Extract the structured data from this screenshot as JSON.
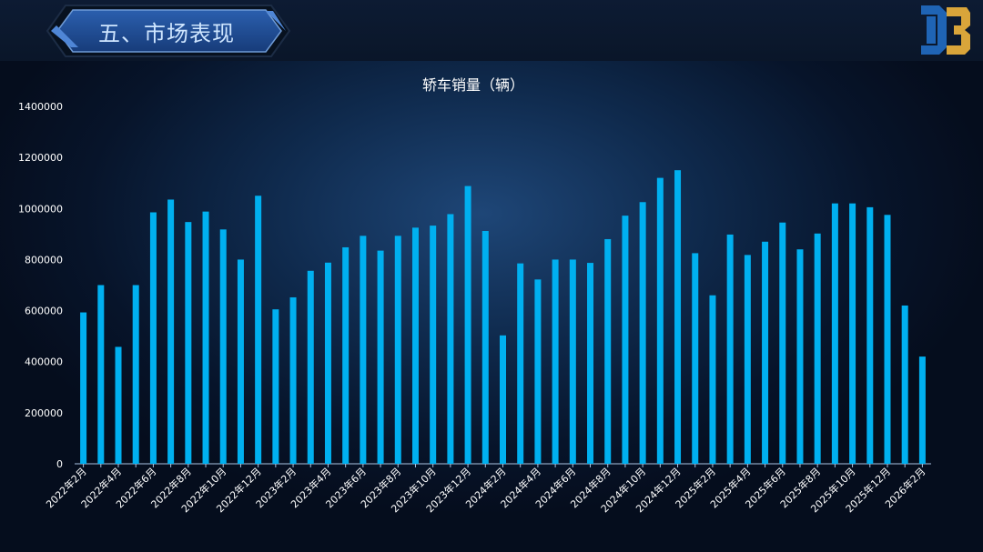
{
  "header": {
    "section_title": "五、市场表现",
    "logo_icon": "db-logo-icon"
  },
  "colors": {
    "bar": "#00b0f0",
    "axis": "#a9c4e2",
    "text": "#ffffff",
    "title_text": "#cfe6ff"
  },
  "chart_data": {
    "type": "bar",
    "title": "轿车销量（辆）",
    "xlabel": "",
    "ylabel": "",
    "ylim": [
      0,
      1400000
    ],
    "yticks": [
      0,
      200000,
      400000,
      600000,
      800000,
      1000000,
      1200000,
      1400000
    ],
    "grid": false,
    "legend": "none",
    "categories": [
      "2022年2月",
      "2022年3月",
      "2022年4月",
      "2022年5月",
      "2022年6月",
      "2022年7月",
      "2022年8月",
      "2022年9月",
      "2022年10月",
      "2022年11月",
      "2022年12月",
      "2023年1月",
      "2023年2月",
      "2023年3月",
      "2023年4月",
      "2023年5月",
      "2023年6月",
      "2023年7月",
      "2023年8月",
      "2023年9月",
      "2023年10月",
      "2023年11月",
      "2023年12月",
      "2024年1月",
      "2024年2月",
      "2024年3月",
      "2024年4月",
      "2024年5月",
      "2024年6月",
      "2024年7月",
      "2024年8月",
      "2024年9月",
      "2024年10月",
      "2024年11月",
      "2024年12月",
      "2025年1月",
      "2025年2月",
      "2025年3月",
      "2025年4月",
      "2025年5月",
      "2025年6月",
      "2025年7月",
      "2025年8月",
      "2025年9月",
      "2025年10月",
      "2025年11月",
      "2025年12月",
      "2026年1月",
      "2026年2月"
    ],
    "shown_tick_labels": [
      "2022年2月",
      "2022年4月",
      "2022年6月",
      "2022年8月",
      "2022年10月",
      "2022年12月",
      "2023年2月",
      "2023年4月",
      "2023年6月",
      "2023年8月",
      "2023年10月",
      "2023年12月",
      "2024年2月",
      "2024年4月",
      "2024年6月",
      "2024年8月",
      "2024年10月",
      "2024年12月",
      "2025年2月",
      "2025年4月",
      "2025年6月",
      "2025年8月",
      "2025年10月",
      "2025年12月",
      "2026年2月"
    ],
    "values": [
      593000,
      700000,
      458000,
      700000,
      985000,
      1035000,
      947000,
      988000,
      918000,
      800000,
      1050000,
      605000,
      652000,
      756000,
      788000,
      848000,
      893000,
      835000,
      893000,
      925000,
      933000,
      978000,
      1088000,
      912000,
      503000,
      785000,
      722000,
      800000,
      800000,
      787000,
      880000,
      972000,
      1025000,
      1120000,
      1150000,
      825000,
      660000,
      898000,
      818000,
      870000,
      945000,
      840000,
      902000,
      1020000,
      1020000,
      1005000,
      975000,
      620000,
      420000
    ]
  }
}
